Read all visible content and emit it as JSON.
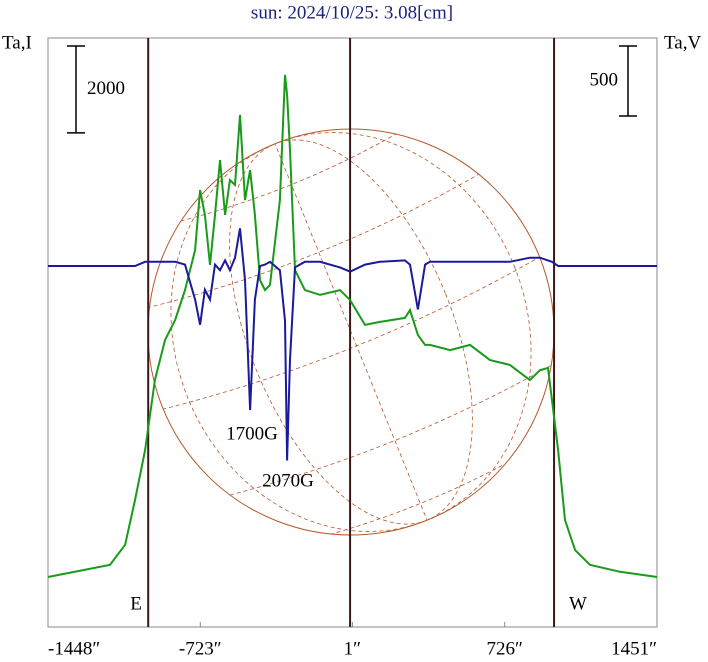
{
  "chart_data": {
    "type": "line",
    "title": "sun: 2024/10/25: 3.08[cm]",
    "ylabel": "Ta,I",
    "y2label": "Ta,V",
    "x": [
      -1448,
      -1153,
      -1081,
      -1034,
      -986,
      -939,
      -891,
      -843,
      -796,
      -748,
      -724,
      -701,
      -677,
      -653,
      -629,
      -605,
      -582,
      -558,
      -534,
      -510,
      -486,
      -463,
      -439,
      -415,
      -391,
      -344,
      -320,
      -310,
      -296,
      -272,
      -225,
      -153,
      -58,
      -10,
      61,
      132,
      251,
      275,
      313,
      347,
      370,
      466,
      561,
      656,
      751,
      846,
      894,
      932,
      951,
      980,
      1013,
      1061,
      1132,
      1275,
      1451
    ],
    "series": [
      {
        "name": "I",
        "color": "#1a9a1a",
        "values": [
          1150,
          1430,
          1890,
          2920,
          4070,
          5680,
          6600,
          7060,
          7750,
          8670,
          10050,
          9480,
          8330,
          9480,
          10740,
          9480,
          10280,
          10170,
          11780,
          9820,
          10510,
          9480,
          7980,
          7750,
          7870,
          9820,
          12700,
          12240,
          10970,
          8210,
          7750,
          7640,
          7750,
          7520,
          6950,
          7020,
          7110,
          7290,
          6720,
          6490,
          6490,
          6370,
          6490,
          6140,
          6030,
          5680,
          5910,
          5960,
          5220,
          4070,
          2460,
          1770,
          1430,
          1270,
          1150
        ]
      },
      {
        "name": "V",
        "color": "#1a1a9a",
        "axis": "y2",
        "values": [
          0,
          0,
          0,
          0,
          30,
          30,
          30,
          30,
          10,
          -240,
          -420,
          -170,
          -240,
          10,
          -30,
          40,
          -30,
          60,
          270,
          -100,
          -1030,
          -240,
          0,
          10,
          30,
          -30,
          -390,
          -1390,
          -670,
          -10,
          30,
          30,
          -10,
          -40,
          10,
          30,
          40,
          10,
          -310,
          10,
          30,
          30,
          30,
          30,
          30,
          60,
          60,
          40,
          30,
          0,
          0,
          0,
          0,
          0,
          0
        ]
      }
    ],
    "xlim": [
      -1448,
      1451
    ],
    "xticks": [
      {
        "value": -1448,
        "label": "-1448″"
      },
      {
        "value": -723,
        "label": "-723″"
      },
      {
        "value": 1,
        "label": "1″"
      },
      {
        "value": 726,
        "label": "726″"
      },
      {
        "value": 1451,
        "label": "1451″"
      }
    ],
    "ylim": [
      0,
      13550
    ],
    "y2lim": [
      -2580,
      1630
    ],
    "vlines": [
      -971,
      -10,
      961
    ],
    "scale_bars": [
      {
        "value": 2000,
        "axis": "y"
      },
      {
        "value": 500,
        "axis": "y2"
      }
    ],
    "annotations": [
      "1700G",
      "2070G",
      "E",
      "W"
    ]
  }
}
